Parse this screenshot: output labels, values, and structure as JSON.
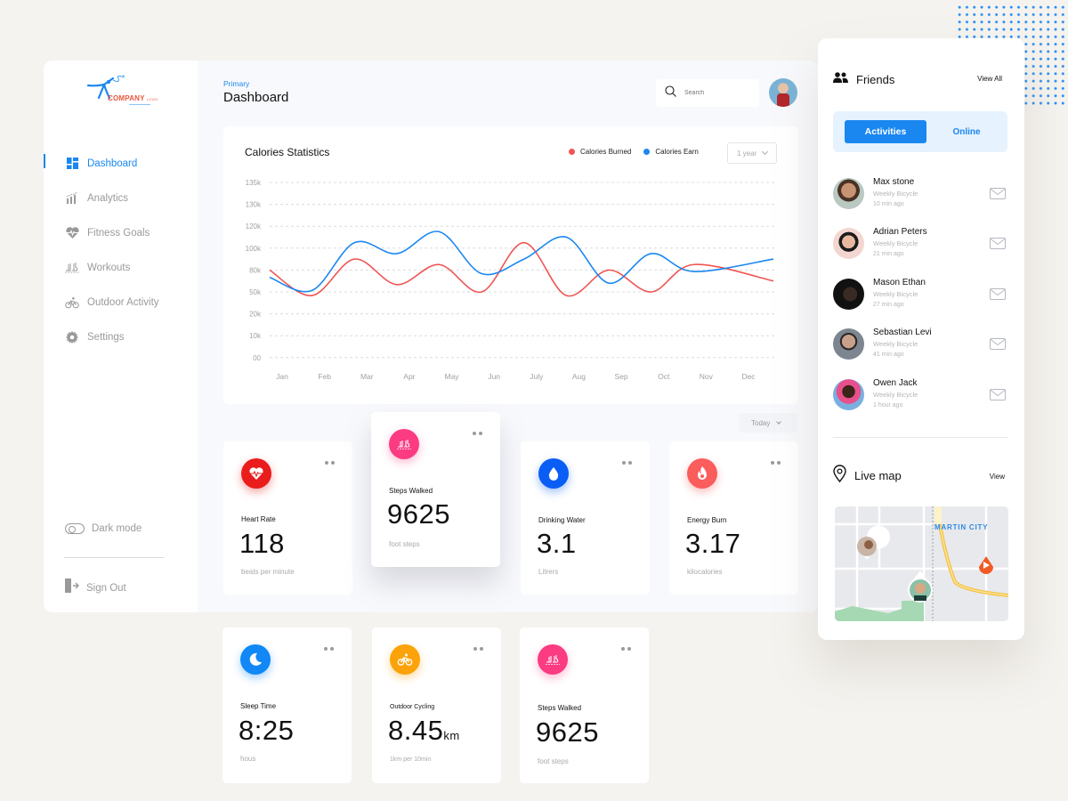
{
  "brand": {
    "logo_text": "COMPANY",
    "logo_sub": "LOGO"
  },
  "sidebar": {
    "items": [
      {
        "label": "Dashboard",
        "icon": "dashboard-grid-icon",
        "active": true
      },
      {
        "label": "Analytics",
        "icon": "bar-chart-icon"
      },
      {
        "label": "Fitness Goals",
        "icon": "heart-pulse-icon"
      },
      {
        "label": "Workouts",
        "icon": "shoes-icon"
      },
      {
        "label": "Outdoor Activity",
        "icon": "bicycle-icon"
      },
      {
        "label": "Settings",
        "icon": "gear-icon"
      }
    ],
    "dark_mode_label": "Dark mode",
    "sign_out_label": "Sign Out"
  },
  "header": {
    "breadcrumb": "Primary",
    "title": "Dashboard",
    "search_placeholder": "Search"
  },
  "chart_card": {
    "title": "Calories Statistics",
    "legend": [
      {
        "label": "Calories Burned",
        "color": "#f05454"
      },
      {
        "label": "Calories Earn",
        "color": "#1a87f0"
      }
    ],
    "range_select": "1 year"
  },
  "chart_data": {
    "type": "line",
    "title": "Calories Statistics",
    "xlabel": "",
    "ylabel": "",
    "categories": [
      "Jan",
      "Feb",
      "Mar",
      "Apr",
      "May",
      "Jun",
      "July",
      "Aug",
      "Sep",
      "Oct",
      "Nov",
      "Dec"
    ],
    "y_ticks": [
      "00",
      "10k",
      "20k",
      "50k",
      "80k",
      "100k",
      "120k",
      "130k",
      "135k"
    ],
    "grid": "dashed horizontal",
    "legend_position": "top-right",
    "series": [
      {
        "name": "Calories Burned",
        "color": "#f05454",
        "values": [
          80,
          45,
          90,
          60,
          85,
          50,
          105,
          45,
          80,
          50,
          85,
          65
        ]
      },
      {
        "name": "Calories Earn",
        "color": "#1a87f0",
        "values": [
          70,
          52,
          105,
          95,
          115,
          75,
          90,
          110,
          62,
          95,
          78,
          90
        ]
      }
    ]
  },
  "today_select": "Today",
  "stats": [
    {
      "label": "Heart Rate",
      "value": "118",
      "unit": "beats per minute",
      "icon": "heart-pulse-icon",
      "color": "#ea1c1c"
    },
    {
      "label": "Steps Walked",
      "value": "9625",
      "unit": "foot steps",
      "icon": "shoes-icon",
      "color": "#fb3b82"
    },
    {
      "label": "Drinking Water",
      "value": "3.1",
      "unit": "Litrers",
      "icon": "water-drop-icon",
      "color": "#0a5ef5"
    },
    {
      "label": "Energy Burn",
      "value": "3.17",
      "unit": "kilocalories",
      "icon": "flame-icon",
      "color": "#fb5c5c"
    },
    {
      "label": "Sleep Time",
      "value": "8:25",
      "unit": "hous",
      "icon": "moon-icon",
      "color": "#1188f5"
    },
    {
      "label": "Outdoor Cycling",
      "value": "8.45",
      "value_suffix": "km",
      "unit": "1km per 10min",
      "icon": "bicycle-icon",
      "color": "#fca20a"
    },
    {
      "label": "Steps Walked",
      "value": "9625",
      "unit": "foot steps",
      "icon": "shoes-icon",
      "color": "#fb3b82"
    }
  ],
  "friends_panel": {
    "title": "Friends",
    "view_all": "View All",
    "tabs": [
      {
        "label": "Activities",
        "active": true
      },
      {
        "label": "Online"
      }
    ],
    "friends": [
      {
        "name": "Max stone",
        "activity": "Weekly Bicycle",
        "time": "10 min ago"
      },
      {
        "name": "Adrian Peters",
        "activity": "Weekly Bicycle",
        "time": "21 min ago"
      },
      {
        "name": "Mason Ethan",
        "activity": "Weekly Bicycle",
        "time": "27 min ago"
      },
      {
        "name": "Sebastian Levi",
        "activity": "Weekly Bicycle",
        "time": "41 min ago"
      },
      {
        "name": "Owen Jack",
        "activity": "Weekly Bicycle",
        "time": "1 hour ago"
      }
    ],
    "live_map": {
      "title": "Live map",
      "view": "View",
      "city_label": "MARTIN CITY"
    }
  }
}
